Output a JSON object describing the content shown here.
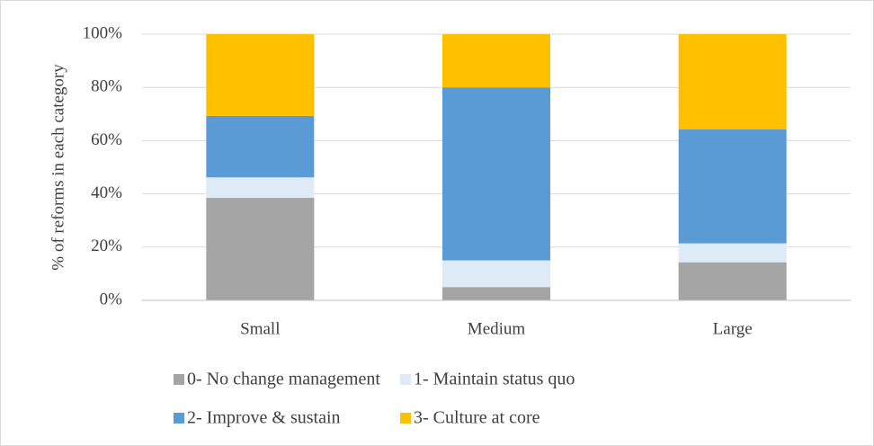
{
  "chart_data": {
    "type": "stacked_bar",
    "y_label": "% of reforms in each category",
    "categories": [
      "Small",
      "Medium",
      "Large"
    ],
    "series": [
      {
        "name": "0- No change management",
        "color": "#a5a5a5",
        "values": [
          38.5,
          5,
          14.3
        ]
      },
      {
        "name": "1- Maintain status quo",
        "color": "#deebf7",
        "values": [
          7.7,
          10,
          7.1
        ]
      },
      {
        "name": "2- Improve & sustain",
        "color": "#5b9bd5",
        "values": [
          23.1,
          65,
          42.9
        ]
      },
      {
        "name": "3- Culture at core",
        "color": "#ffc000",
        "values": [
          30.7,
          20,
          35.7
        ]
      }
    ],
    "ylim": [
      0,
      100
    ],
    "yticks": [
      {
        "value": 0,
        "label": "0%"
      },
      {
        "value": 20,
        "label": "20%"
      },
      {
        "value": 40,
        "label": "40%"
      },
      {
        "value": 60,
        "label": "60%"
      },
      {
        "value": 80,
        "label": "80%"
      },
      {
        "value": 100,
        "label": "100%"
      }
    ],
    "grid": true,
    "legend": "bottom"
  }
}
